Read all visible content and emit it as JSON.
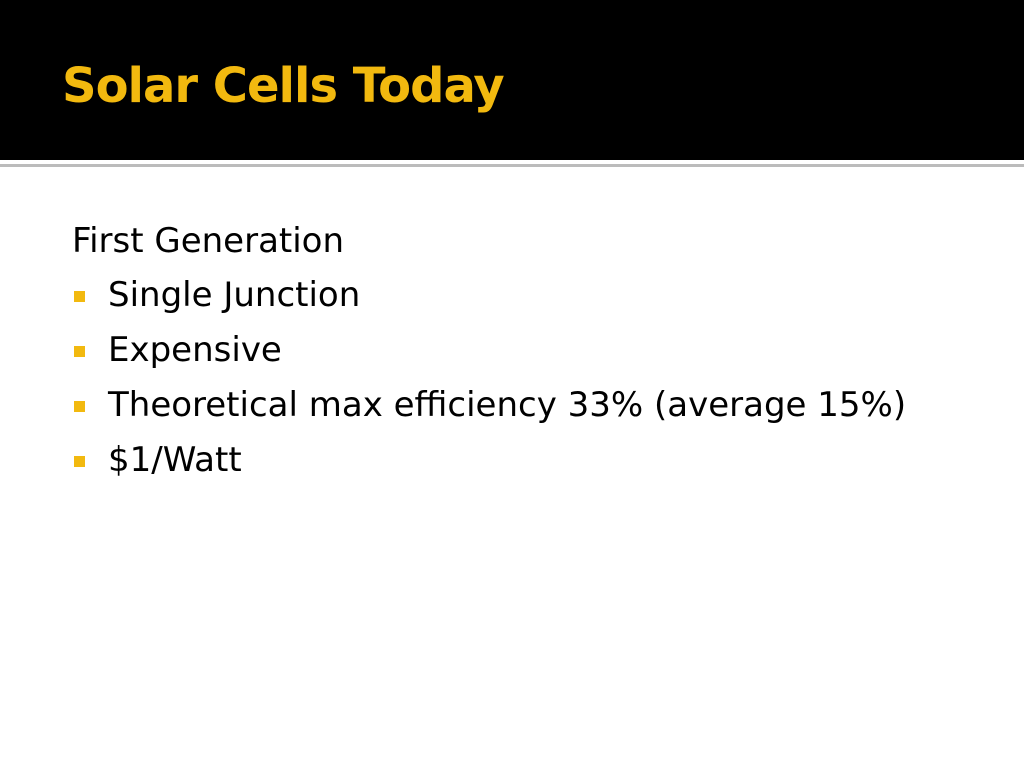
{
  "slide": {
    "title": "Solar Cells Today",
    "heading": "First Generation",
    "bullets": [
      "Single Junction",
      "Expensive",
      "Theoretical max efficiency 33% (average 15%)",
      "$1/Watt"
    ]
  }
}
